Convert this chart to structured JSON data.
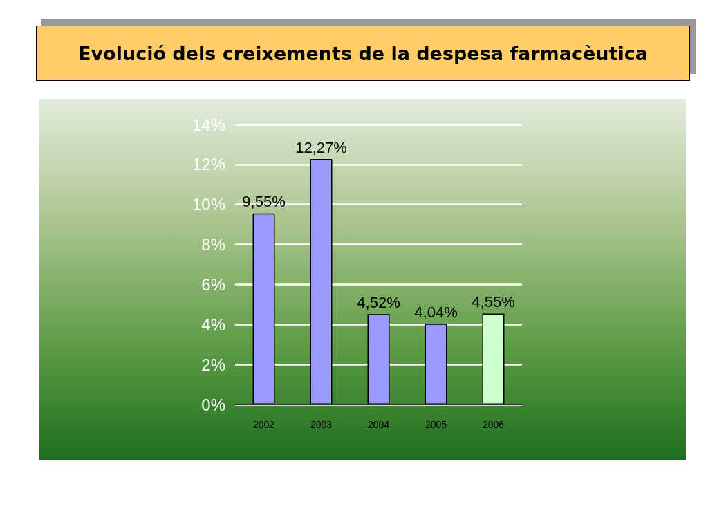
{
  "chart_data": {
    "type": "bar",
    "title": "Evolució dels creixements de la despesa farmacèutica",
    "categories": [
      "2002",
      "2003",
      "2004",
      "2005",
      "2006"
    ],
    "values": [
      9.55,
      12.27,
      4.52,
      4.04,
      4.55
    ],
    "colors": [
      "#9999ff",
      "#9999ff",
      "#9999ff",
      "#9999ff",
      "#ccffcc"
    ],
    "value_labels": [
      "9,55%",
      "12,27%",
      "4,52%",
      "4,04%",
      "4,55%"
    ],
    "ylim": [
      0,
      14
    ],
    "yticks": [
      {
        "value": 0,
        "label": "0%"
      },
      {
        "value": 2,
        "label": "2%"
      },
      {
        "value": 4,
        "label": "4%"
      },
      {
        "value": 6,
        "label": "6%"
      },
      {
        "value": 8,
        "label": "8%"
      },
      {
        "value": 10,
        "label": "10%"
      },
      {
        "value": 12,
        "label": "12%"
      },
      {
        "value": 14,
        "label": "14%"
      }
    ],
    "grid": "y"
  }
}
